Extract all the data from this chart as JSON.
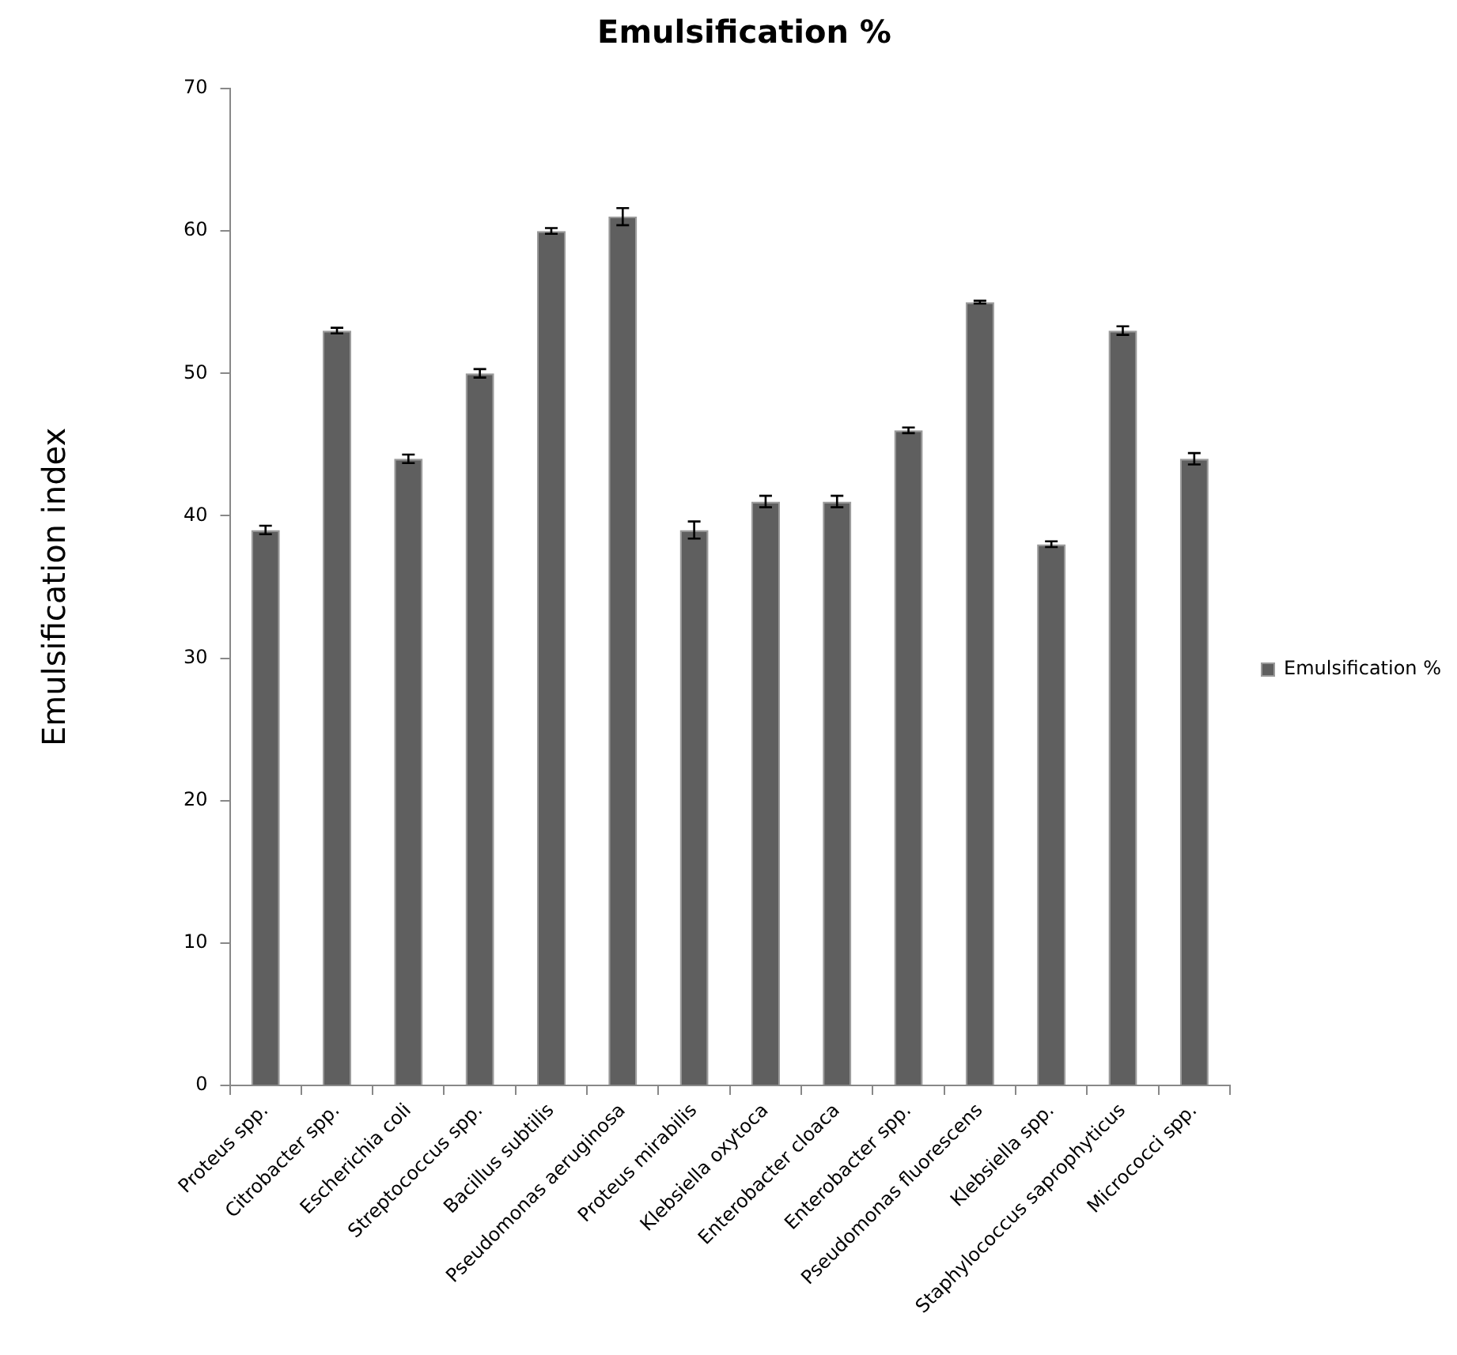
{
  "chart_data": {
    "type": "bar",
    "title": "Emulsification %",
    "ylabel": "Emulsification index",
    "categories": [
      "Proteus spp.",
      "Citrobacter spp.",
      "Escherichia coli",
      "Streptococcus spp.",
      "Bacillus subtilis",
      "Pseudomonas aeruginosa",
      "Proteus mirabilis",
      "Klebsiella oxytoca",
      "Enterobacter cloaca",
      "Enterobacter spp.",
      "Pseudomonas fluorescens",
      "Klebsiella spp.",
      "Staphylococcus saprophyticus",
      "Micrococci spp."
    ],
    "series": [
      {
        "name": "Emulsification %",
        "color": "#5f5f5f",
        "values": [
          39,
          53,
          44,
          50,
          60,
          61,
          39,
          41,
          41,
          46,
          55,
          38,
          53,
          44
        ],
        "errors": [
          0.3,
          0.2,
          0.3,
          0.3,
          0.2,
          0.6,
          0.6,
          0.4,
          0.4,
          0.2,
          0.1,
          0.2,
          0.3,
          0.4
        ]
      }
    ],
    "ylim": [
      0,
      70
    ],
    "yticks": [
      0,
      10,
      20,
      30,
      40,
      50,
      60,
      70
    ],
    "legend": "right"
  }
}
